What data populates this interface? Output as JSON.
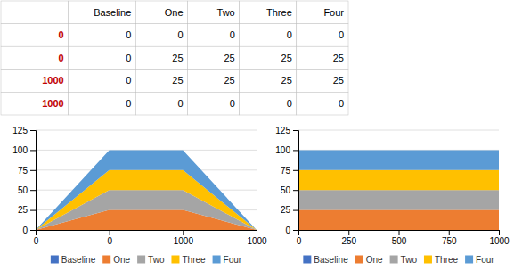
{
  "chart_data": [
    {
      "type": "table",
      "headers": [
        null,
        "Baseline",
        "One",
        "Two",
        "Three",
        "Four"
      ],
      "rows": [
        [
          0,
          0,
          0,
          0,
          0,
          0
        ],
        [
          0,
          0,
          25,
          25,
          25,
          25
        ],
        [
          1000,
          0,
          25,
          25,
          25,
          25
        ],
        [
          1000,
          0,
          0,
          0,
          0,
          0
        ]
      ]
    },
    {
      "type": "area",
      "stacked": true,
      "categories": [
        0,
        0,
        1000,
        1000
      ],
      "series": [
        {
          "name": "Baseline",
          "color": "#4472C4",
          "values": [
            0,
            0,
            0,
            0
          ]
        },
        {
          "name": "One",
          "color": "#ED7D31",
          "values": [
            0,
            25,
            25,
            0
          ]
        },
        {
          "name": "Two",
          "color": "#A5A5A5",
          "values": [
            0,
            25,
            25,
            0
          ]
        },
        {
          "name": "Three",
          "color": "#FFC000",
          "values": [
            0,
            25,
            25,
            0
          ]
        },
        {
          "name": "Four",
          "color": "#5B9BD5",
          "values": [
            0,
            25,
            25,
            0
          ]
        }
      ],
      "ylim": [
        0,
        125
      ],
      "yticks": [
        0,
        25,
        50,
        75,
        100,
        125
      ],
      "grid": true,
      "legend": "bottom"
    },
    {
      "type": "area",
      "stacked": true,
      "x": [
        0,
        1000
      ],
      "series": [
        {
          "name": "Baseline",
          "color": "#4472C4",
          "values": [
            0,
            0
          ]
        },
        {
          "name": "One",
          "color": "#ED7D31",
          "values": [
            25,
            25
          ]
        },
        {
          "name": "Two",
          "color": "#A5A5A5",
          "values": [
            25,
            25
          ]
        },
        {
          "name": "Three",
          "color": "#FFC000",
          "values": [
            25,
            25
          ]
        },
        {
          "name": "Four",
          "color": "#5B9BD5",
          "values": [
            25,
            25
          ]
        }
      ],
      "xlim": [
        0,
        1000
      ],
      "xticks": [
        0,
        250,
        500,
        750,
        1000
      ],
      "ylim": [
        0,
        125
      ],
      "yticks": [
        0,
        25,
        50,
        75,
        100,
        125
      ],
      "grid": true,
      "legend": "bottom"
    }
  ]
}
